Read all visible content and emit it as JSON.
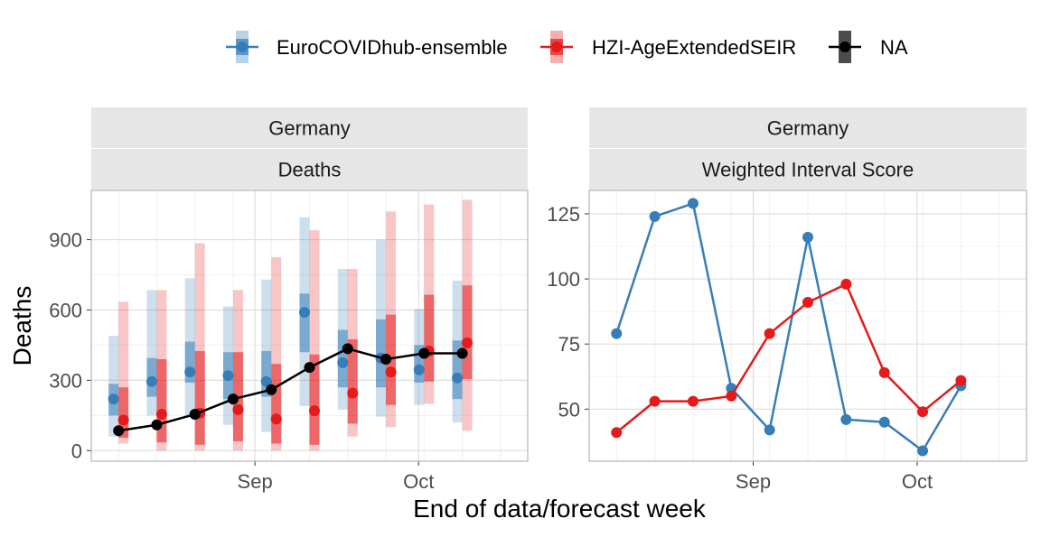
{
  "legend": [
    {
      "name": "EuroCOVIDhub-ensemble",
      "color": "#377EB8"
    },
    {
      "name": "HZI-AgeExtendedSEIR",
      "color": "#E41A1C"
    },
    {
      "name": "NA",
      "color": "#000000"
    }
  ],
  "x_axis_title": "End of data/forecast week",
  "chart_data": [
    {
      "type": "line",
      "facet_labels": [
        "Germany",
        "Deaths"
      ],
      "ylabel": "Deaths",
      "xlabel": "",
      "x_ticks": [
        "Sep",
        "Oct"
      ],
      "x_weeks": [
        "2021-08-07",
        "2021-08-14",
        "2021-08-21",
        "2021-08-28",
        "2021-09-04",
        "2021-09-11",
        "2021-09-18",
        "2021-09-25",
        "2021-10-02",
        "2021-10-09",
        "2021-10-16"
      ],
      "x_tick_dates": [
        "2021-09-01",
        "2021-10-01"
      ],
      "xlim": [
        "2021-08-02",
        "2021-10-21"
      ],
      "y_ticks": [
        0,
        300,
        600,
        900
      ],
      "ylim": [
        -45,
        1110
      ],
      "grid": true,
      "series": [
        {
          "name": "EuroCOVIDhub-ensemble",
          "color": "#377EB8",
          "median": [
            220,
            295,
            335,
            320,
            295,
            590,
            375,
            395,
            345,
            310
          ],
          "inner_interval": [
            [
              150,
              285
            ],
            [
              230,
              395
            ],
            [
              290,
              465
            ],
            [
              220,
              420
            ],
            [
              230,
              425
            ],
            [
              420,
              670
            ],
            [
              270,
              515
            ],
            [
              270,
              560
            ],
            [
              290,
              450
            ],
            [
              220,
              470
            ]
          ],
          "outer_interval": [
            [
              60,
              490
            ],
            [
              150,
              685
            ],
            [
              145,
              735
            ],
            [
              110,
              615
            ],
            [
              80,
              730
            ],
            [
              190,
              995
            ],
            [
              175,
              775
            ],
            [
              145,
              900
            ],
            [
              195,
              605
            ],
            [
              120,
              725
            ]
          ],
          "x_index": [
            0,
            1,
            2,
            3,
            4,
            5,
            6,
            7,
            8,
            9
          ]
        },
        {
          "name": "HZI-AgeExtendedSEIR",
          "color": "#E41A1C",
          "median": [
            130,
            155,
            160,
            175,
            135,
            170,
            245,
            335,
            425,
            460
          ],
          "inner_interval": [
            [
              55,
              270
            ],
            [
              35,
              390
            ],
            [
              25,
              425
            ],
            [
              40,
              420
            ],
            [
              30,
              370
            ],
            [
              25,
              410
            ],
            [
              115,
              475
            ],
            [
              195,
              580
            ],
            [
              295,
              665
            ],
            [
              305,
              705
            ]
          ],
          "outer_interval": [
            [
              30,
              635
            ],
            [
              0,
              685
            ],
            [
              0,
              885
            ],
            [
              0,
              685
            ],
            [
              0,
              825
            ],
            [
              0,
              940
            ],
            [
              60,
              775
            ],
            [
              100,
              1020
            ],
            [
              200,
              1050
            ],
            [
              85,
              1070
            ]
          ],
          "x_index": [
            0,
            1,
            2,
            3,
            4,
            5,
            6,
            7,
            8,
            9
          ]
        },
        {
          "name": "NA",
          "color": "#000000",
          "x_index": [
            0,
            1,
            2,
            3,
            4,
            5,
            6,
            7,
            8,
            9
          ],
          "values": [
            85,
            110,
            155,
            220,
            260,
            355,
            435,
            390,
            415,
            415
          ]
        }
      ]
    },
    {
      "type": "line",
      "facet_labels": [
        "Germany",
        "Weighted Interval Score"
      ],
      "xlabel": "",
      "ylabel": "",
      "x_ticks": [
        "Sep",
        "Oct"
      ],
      "x_weeks": [
        "2021-08-07",
        "2021-08-14",
        "2021-08-21",
        "2021-08-28",
        "2021-09-04",
        "2021-09-11",
        "2021-09-18",
        "2021-09-25",
        "2021-10-02",
        "2021-10-09",
        "2021-10-16"
      ],
      "x_tick_dates": [
        "2021-09-01",
        "2021-10-01"
      ],
      "xlim": [
        "2021-08-02",
        "2021-10-21"
      ],
      "y_ticks": [
        50,
        75,
        100,
        125
      ],
      "ylim": [
        30,
        134
      ],
      "grid": true,
      "series": [
        {
          "name": "EuroCOVIDhub-ensemble",
          "color": "#377EB8",
          "x_index": [
            0,
            1,
            2,
            3,
            4,
            5,
            6,
            7,
            8,
            9
          ],
          "values": [
            79,
            124,
            129,
            58,
            42,
            116,
            46,
            45,
            34,
            59
          ]
        },
        {
          "name": "HZI-AgeExtendedSEIR",
          "color": "#E41A1C",
          "x_index": [
            0,
            1,
            2,
            3,
            4,
            5,
            6,
            7,
            8,
            9
          ],
          "values": [
            41,
            53,
            53,
            55,
            79,
            91,
            98,
            64,
            49,
            61
          ]
        }
      ]
    }
  ]
}
